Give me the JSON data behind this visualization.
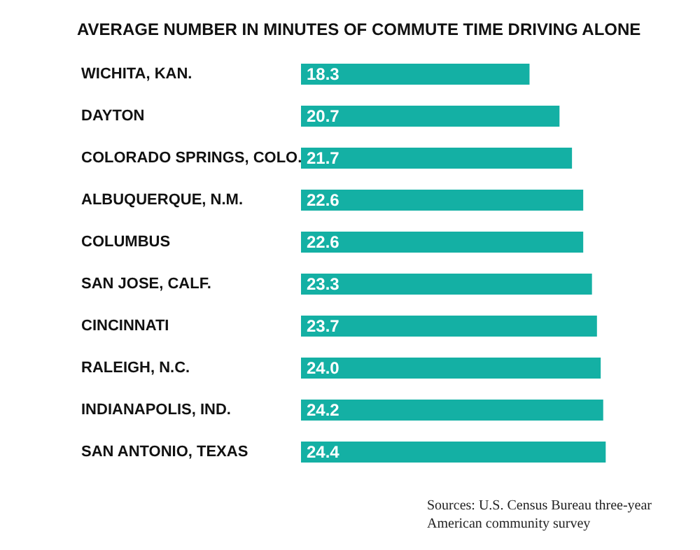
{
  "chart_data": {
    "type": "bar",
    "orientation": "horizontal",
    "title": "AVERAGE NUMBER IN MINUTES OF COMMUTE TIME DRIVING ALONE",
    "categories": [
      "WICHITA, KAN.",
      "DAYTON",
      "COLORADO SPRINGS, COLO.",
      "ALBUQUERQUE, N.M.",
      "COLUMBUS",
      "SAN JOSE, CALF.",
      "CINCINNATI",
      "RALEIGH, N.C.",
      "INDIANAPOLIS, IND.",
      "SAN ANTONIO, TEXAS"
    ],
    "values": [
      18.3,
      20.7,
      21.7,
      22.6,
      22.6,
      23.3,
      23.7,
      24.0,
      24.2,
      24.4
    ],
    "value_labels": [
      "18.3",
      "20.7",
      "21.7",
      "22.6",
      "22.6",
      "23.3",
      "23.7",
      "24.0",
      "24.2",
      "24.4"
    ],
    "color": "#14b0a4",
    "annotations": [
      "Sources: U.S. Census Bureau three-year American community survey"
    ]
  }
}
